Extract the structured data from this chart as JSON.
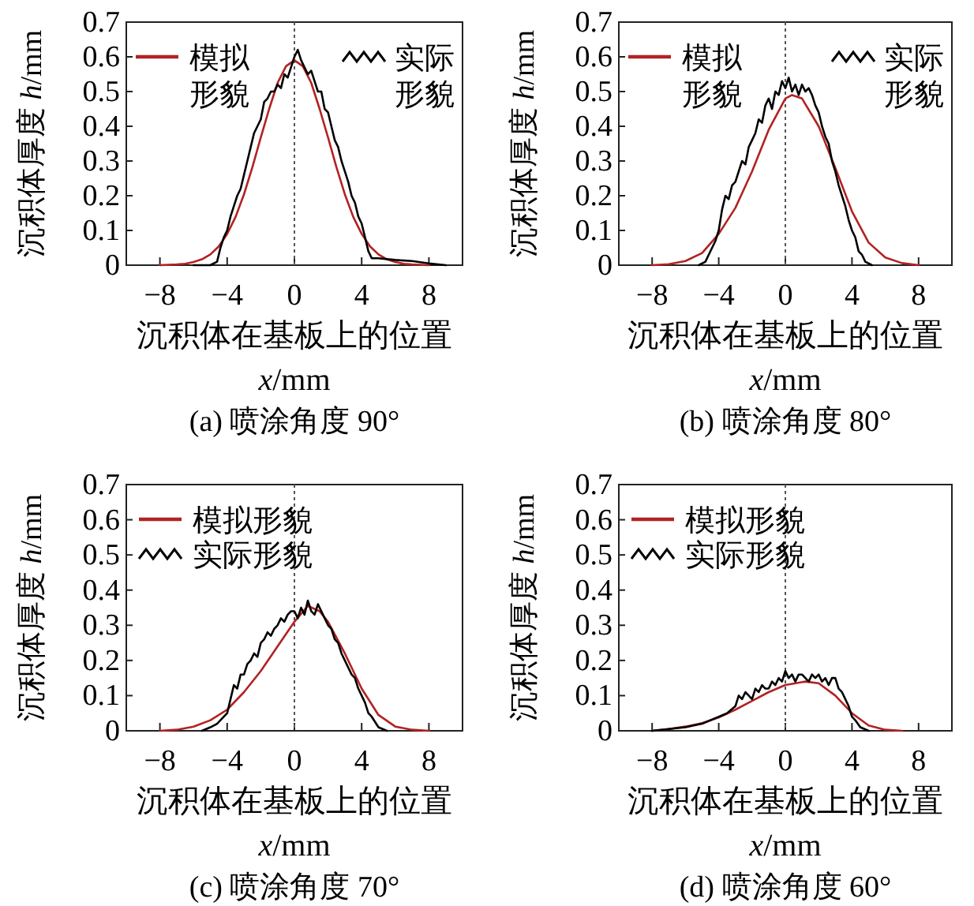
{
  "chart_data": [
    {
      "type": "line",
      "title": "(a) 喷涂角度 90°",
      "xlabel": "沉积体在基板上的位置\nx/mm",
      "ylabel": "沉积体厚度 h/mm",
      "xlim": [
        -10,
        10
      ],
      "ylim": [
        0,
        0.7
      ],
      "xticks": [
        -8,
        -4,
        0,
        4,
        8
      ],
      "yticks": [
        0,
        0.1,
        0.2,
        0.3,
        0.4,
        0.5,
        0.6,
        0.7
      ],
      "legend": "top",
      "ref_lines": [
        {
          "axis": "x",
          "value": 0,
          "line_style": "dotted"
        }
      ],
      "series": [
        {
          "name": "模拟形貌",
          "color": "#b22222",
          "x": [
            -8,
            -7,
            -6.5,
            -6,
            -5.5,
            -5,
            -4.5,
            -4,
            -3.5,
            -3,
            -2.5,
            -2,
            -1.5,
            -1,
            -0.5,
            0,
            0.5,
            1,
            1.5,
            2,
            2.5,
            3,
            3.5,
            4,
            4.5,
            5,
            5.5,
            6,
            6.5,
            7,
            8
          ],
          "values": [
            0,
            0.002,
            0.004,
            0.009,
            0.017,
            0.031,
            0.054,
            0.09,
            0.139,
            0.204,
            0.282,
            0.368,
            0.45,
            0.525,
            0.573,
            0.59,
            0.573,
            0.525,
            0.45,
            0.368,
            0.282,
            0.204,
            0.139,
            0.09,
            0.054,
            0.031,
            0.017,
            0.009,
            0.004,
            0.002,
            0
          ]
        },
        {
          "name": "实际形貌",
          "color": "#000000",
          "x": [
            -6,
            -5,
            -4.6,
            -4.4,
            -4.2,
            -4,
            -3.8,
            -3.6,
            -3.4,
            -3.2,
            -3,
            -2.8,
            -2.6,
            -2.4,
            -2.2,
            -2,
            -1.8,
            -1.6,
            -1.4,
            -1.2,
            -1,
            -0.8,
            -0.6,
            -0.4,
            -0.2,
            0,
            0.2,
            0.4,
            0.6,
            0.8,
            1,
            1.2,
            1.4,
            1.6,
            1.8,
            2,
            2.2,
            2.4,
            2.6,
            2.8,
            3,
            3.2,
            3.4,
            3.6,
            3.8,
            4,
            4.2,
            4.4,
            4.6,
            5,
            6,
            7,
            8,
            9
          ],
          "values": [
            0,
            0,
            0.01,
            0.05,
            0.08,
            0.1,
            0.14,
            0.17,
            0.2,
            0.22,
            0.26,
            0.3,
            0.34,
            0.38,
            0.4,
            0.42,
            0.47,
            0.48,
            0.5,
            0.5,
            0.52,
            0.51,
            0.55,
            0.54,
            0.57,
            0.6,
            0.62,
            0.59,
            0.57,
            0.55,
            0.56,
            0.53,
            0.5,
            0.5,
            0.45,
            0.44,
            0.4,
            0.36,
            0.34,
            0.3,
            0.27,
            0.24,
            0.2,
            0.18,
            0.14,
            0.12,
            0.08,
            0.04,
            0.02,
            0.02,
            0.015,
            0.012,
            0.005,
            0
          ]
        }
      ]
    },
    {
      "type": "line",
      "title": "(b) 喷涂角度 80°",
      "xlabel": "沉积体在基板上的位置\nx/mm",
      "ylabel": "沉积体厚度 h/mm",
      "xlim": [
        -10,
        10
      ],
      "ylim": [
        0,
        0.7
      ],
      "xticks": [
        -8,
        -4,
        0,
        4,
        8
      ],
      "yticks": [
        0,
        0.1,
        0.2,
        0.3,
        0.4,
        0.5,
        0.6,
        0.7
      ],
      "legend": "top",
      "ref_lines": [
        {
          "axis": "x",
          "value": 0,
          "line_style": "dotted"
        }
      ],
      "series": [
        {
          "name": "模拟形貌",
          "color": "#b22222",
          "x": [
            -8,
            -7,
            -6,
            -5,
            -4,
            -3,
            -2,
            -1,
            0,
            0.4,
            1,
            2,
            3,
            4,
            5,
            6,
            7,
            8
          ],
          "values": [
            0,
            0.003,
            0.012,
            0.035,
            0.09,
            0.165,
            0.27,
            0.39,
            0.48,
            0.49,
            0.48,
            0.4,
            0.28,
            0.155,
            0.065,
            0.022,
            0.006,
            0
          ]
        },
        {
          "name": "实际形貌",
          "color": "#000000",
          "x": [
            -5.2,
            -4.8,
            -4.6,
            -4.4,
            -4.2,
            -4,
            -3.8,
            -3.6,
            -3.4,
            -3.2,
            -3,
            -2.8,
            -2.6,
            -2.4,
            -2.2,
            -2,
            -1.8,
            -1.6,
            -1.4,
            -1.2,
            -1,
            -0.8,
            -0.6,
            -0.4,
            -0.2,
            0,
            0.2,
            0.4,
            0.6,
            0.8,
            1,
            1.2,
            1.4,
            1.6,
            1.8,
            2,
            2.2,
            2.4,
            2.6,
            2.8,
            3,
            3.2,
            3.4,
            3.6,
            3.8,
            4,
            4.2,
            4.4,
            4.6,
            4.8,
            5.2
          ],
          "values": [
            0,
            0.01,
            0.03,
            0.05,
            0.07,
            0.1,
            0.16,
            0.2,
            0.19,
            0.23,
            0.24,
            0.27,
            0.3,
            0.29,
            0.34,
            0.36,
            0.38,
            0.42,
            0.41,
            0.46,
            0.48,
            0.45,
            0.5,
            0.49,
            0.53,
            0.51,
            0.54,
            0.5,
            0.52,
            0.49,
            0.52,
            0.5,
            0.51,
            0.49,
            0.46,
            0.44,
            0.4,
            0.37,
            0.35,
            0.3,
            0.27,
            0.23,
            0.2,
            0.17,
            0.13,
            0.1,
            0.08,
            0.04,
            0.03,
            0.01,
            0
          ]
        }
      ]
    },
    {
      "type": "line",
      "title": "(c) 喷涂角度 70°",
      "xlabel": "沉积体在基板上的位置\nx/mm",
      "ylabel": "沉积体厚度 h/mm",
      "xlim": [
        -10,
        10
      ],
      "ylim": [
        0,
        0.7
      ],
      "xticks": [
        -8,
        -4,
        0,
        4,
        8
      ],
      "yticks": [
        0,
        0.1,
        0.2,
        0.3,
        0.4,
        0.5,
        0.6,
        0.7
      ],
      "legend": "top left",
      "ref_lines": [
        {
          "axis": "x",
          "value": 0,
          "line_style": "dotted"
        }
      ],
      "series": [
        {
          "name": "模拟形貌",
          "color": "#b22222",
          "x": [
            -8,
            -7,
            -6,
            -5,
            -4,
            -3,
            -2,
            -1,
            0,
            0.8,
            1.5,
            2,
            3,
            4,
            5,
            6,
            7,
            8
          ],
          "values": [
            0,
            0.003,
            0.012,
            0.03,
            0.06,
            0.11,
            0.17,
            0.24,
            0.31,
            0.355,
            0.34,
            0.31,
            0.22,
            0.12,
            0.045,
            0.012,
            0.003,
            0
          ]
        },
        {
          "name": "实际形貌",
          "color": "#000000",
          "x": [
            -5.5,
            -5,
            -4.6,
            -4.2,
            -4,
            -3.8,
            -3.6,
            -3.4,
            -3.2,
            -3,
            -2.8,
            -2.6,
            -2.4,
            -2.2,
            -2,
            -1.8,
            -1.6,
            -1.4,
            -1.2,
            -1,
            -0.8,
            -0.6,
            -0.4,
            -0.2,
            0,
            0.2,
            0.4,
            0.6,
            0.8,
            1,
            1.2,
            1.4,
            1.6,
            1.8,
            2,
            2.2,
            2.4,
            2.6,
            2.8,
            3,
            3.2,
            3.4,
            3.6,
            3.8,
            4,
            4.2,
            4.4,
            4.6,
            5,
            5.5
          ],
          "values": [
            0,
            0.01,
            0.02,
            0.04,
            0.05,
            0.09,
            0.13,
            0.12,
            0.16,
            0.16,
            0.19,
            0.2,
            0.22,
            0.21,
            0.25,
            0.26,
            0.28,
            0.27,
            0.29,
            0.3,
            0.32,
            0.31,
            0.33,
            0.34,
            0.34,
            0.32,
            0.35,
            0.33,
            0.37,
            0.34,
            0.33,
            0.36,
            0.34,
            0.32,
            0.3,
            0.29,
            0.26,
            0.25,
            0.22,
            0.2,
            0.18,
            0.16,
            0.15,
            0.12,
            0.1,
            0.08,
            0.05,
            0.04,
            0.01,
            0
          ]
        }
      ]
    },
    {
      "type": "line",
      "title": "(d) 喷涂角度 60°",
      "xlabel": "沉积体在基板上的位置\nx/mm",
      "ylabel": "沉积体厚度 h/mm",
      "xlim": [
        -10,
        10
      ],
      "ylim": [
        0,
        0.7
      ],
      "xticks": [
        -8,
        -4,
        0,
        4,
        8
      ],
      "yticks": [
        0,
        0.1,
        0.2,
        0.3,
        0.4,
        0.5,
        0.6,
        0.7
      ],
      "legend": "top left",
      "ref_lines": [
        {
          "axis": "x",
          "value": 0,
          "line_style": "dotted"
        }
      ],
      "series": [
        {
          "name": "模拟形貌",
          "color": "#b22222",
          "x": [
            -8,
            -7,
            -6,
            -5,
            -4,
            -3,
            -2,
            -1,
            0,
            1.2,
            2,
            3,
            4,
            5,
            6,
            7
          ],
          "values": [
            0,
            0.005,
            0.012,
            0.022,
            0.038,
            0.06,
            0.085,
            0.11,
            0.13,
            0.14,
            0.135,
            0.1,
            0.05,
            0.015,
            0.003,
            0
          ]
        },
        {
          "name": "实际形貌",
          "color": "#000000",
          "x": [
            -8,
            -7,
            -6,
            -5,
            -4,
            -3.5,
            -3,
            -2.8,
            -2.6,
            -2.4,
            -2.2,
            -2,
            -1.8,
            -1.6,
            -1.4,
            -1.2,
            -1,
            -0.8,
            -0.6,
            -0.4,
            -0.2,
            0,
            0.2,
            0.4,
            0.6,
            0.8,
            1,
            1.2,
            1.4,
            1.6,
            1.8,
            2,
            2.2,
            2.4,
            2.6,
            2.8,
            3,
            3.2,
            3.4,
            3.6,
            3.8,
            4,
            4.2,
            4.5,
            5
          ],
          "values": [
            0,
            0.005,
            0.01,
            0.02,
            0.04,
            0.05,
            0.07,
            0.1,
            0.09,
            0.11,
            0.1,
            0.09,
            0.12,
            0.11,
            0.13,
            0.12,
            0.12,
            0.14,
            0.13,
            0.15,
            0.14,
            0.17,
            0.15,
            0.16,
            0.14,
            0.16,
            0.16,
            0.15,
            0.14,
            0.16,
            0.15,
            0.16,
            0.14,
            0.15,
            0.13,
            0.15,
            0.15,
            0.12,
            0.11,
            0.09,
            0.07,
            0.04,
            0.03,
            0.01,
            0
          ]
        }
      ]
    }
  ]
}
